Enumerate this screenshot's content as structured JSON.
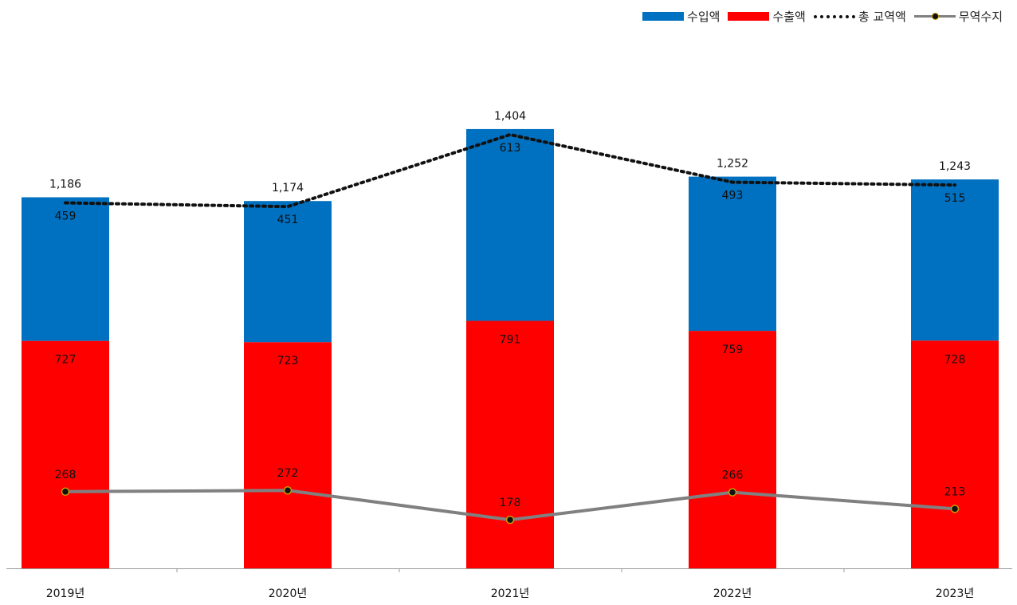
{
  "legend": {
    "import": "수입액",
    "export": "수출액",
    "total": "총 교역액",
    "balance": "무역수지"
  },
  "colors": {
    "import": "#0070c0",
    "export": "#ff0000",
    "total": "#111111",
    "balance": "#808080"
  },
  "chart_data": {
    "type": "bar",
    "stacked": true,
    "categories": [
      "2019년",
      "2020년",
      "2021년",
      "2022년",
      "2023년"
    ],
    "series": [
      {
        "name": "수출액",
        "kind": "bar",
        "values": [
          727,
          723,
          791,
          759,
          728
        ]
      },
      {
        "name": "수입액",
        "kind": "bar",
        "values": [
          459,
          451,
          613,
          493,
          515
        ]
      },
      {
        "name": "총 교역액",
        "kind": "line",
        "style": "dotted",
        "values": [
          1186,
          1174,
          1404,
          1252,
          1243
        ]
      },
      {
        "name": "무역수지",
        "kind": "line",
        "values": [
          268,
          272,
          178,
          266,
          213
        ]
      }
    ],
    "value_labels": {
      "import": [
        "459",
        "451",
        "613",
        "493",
        "515"
      ],
      "export": [
        "727",
        "723",
        "791",
        "759",
        "728"
      ],
      "total": [
        "1,186",
        "1,174",
        "1,404",
        "1,252",
        "1,243"
      ],
      "balance": [
        "268",
        "272",
        "178",
        "266",
        "213"
      ]
    },
    "ylim": [
      0,
      1430
    ],
    "grid": false,
    "legend_position": "top-right",
    "title": "",
    "xlabel": "",
    "ylabel": ""
  }
}
